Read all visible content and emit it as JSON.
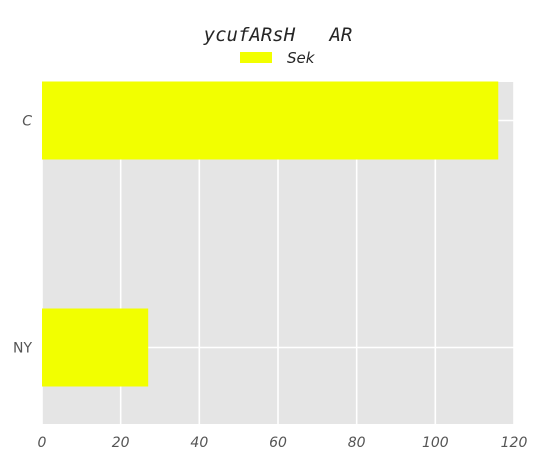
{
  "chart_data": {
    "type": "bar",
    "orientation": "horizontal",
    "title": "ycufARsH   AR",
    "categories": [
      "C",
      "NY"
    ],
    "categories_italic": [
      true,
      false
    ],
    "series": [
      {
        "name": "Sek",
        "values": [
          116,
          27
        ],
        "color": "#f2ff00"
      }
    ],
    "xlabel": "",
    "ylabel": "",
    "xlim": [
      0,
      120
    ],
    "xticks": [
      0,
      20,
      40,
      60,
      80,
      100,
      120
    ],
    "xtick_labels": [
      "0",
      "20",
      "40",
      "60",
      "80",
      "100",
      "120"
    ],
    "grid": true,
    "legend_position": "top-center",
    "colors": {
      "plot_background": "#e5e5e5",
      "grid": "#ffffff",
      "bar": "#f2ff00"
    }
  }
}
